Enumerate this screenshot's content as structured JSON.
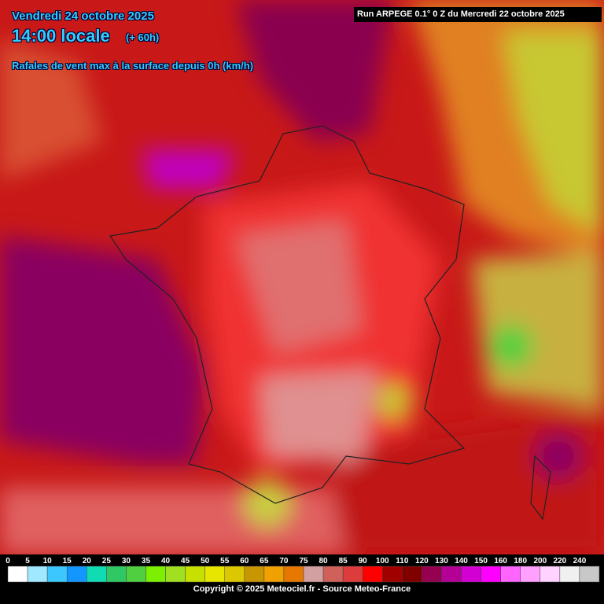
{
  "header": {
    "date": "Vendredi 24 octobre 2025",
    "time": "14:00 locale",
    "lead": "(+ 60h)",
    "subtitle": "Rafales de vent max à la surface depuis 0h (km/h)",
    "run": "Run ARPEGE 0.1° 0 Z du Mercredi 22 octobre 2025"
  },
  "legend": {
    "labels": [
      0,
      5,
      10,
      15,
      20,
      25,
      30,
      35,
      40,
      45,
      50,
      55,
      60,
      65,
      70,
      75,
      80,
      85,
      90,
      100,
      110,
      120,
      130,
      140,
      150,
      160,
      180,
      200,
      220,
      240
    ],
    "colors": [
      "#ffffff",
      "#a0e8ff",
      "#3cc8ff",
      "#1496ff",
      "#10dcb4",
      "#30c864",
      "#50d040",
      "#7cf000",
      "#a0e020",
      "#c8e000",
      "#e6e600",
      "#dcc800",
      "#c89600",
      "#f0a000",
      "#e67800",
      "#d2a0a0",
      "#d0605a",
      "#dc3c3c",
      "#ff0000",
      "#a00000",
      "#800000",
      "#960050",
      "#b40096",
      "#d200d2",
      "#ff00ff",
      "#ff64ff",
      "#ffa0ff",
      "#ffd2ff",
      "#f0f0f0",
      "#c8c8c8"
    ]
  },
  "footer": "Copyright © 2025 Meteociel.fr - Source Meteo-France"
}
